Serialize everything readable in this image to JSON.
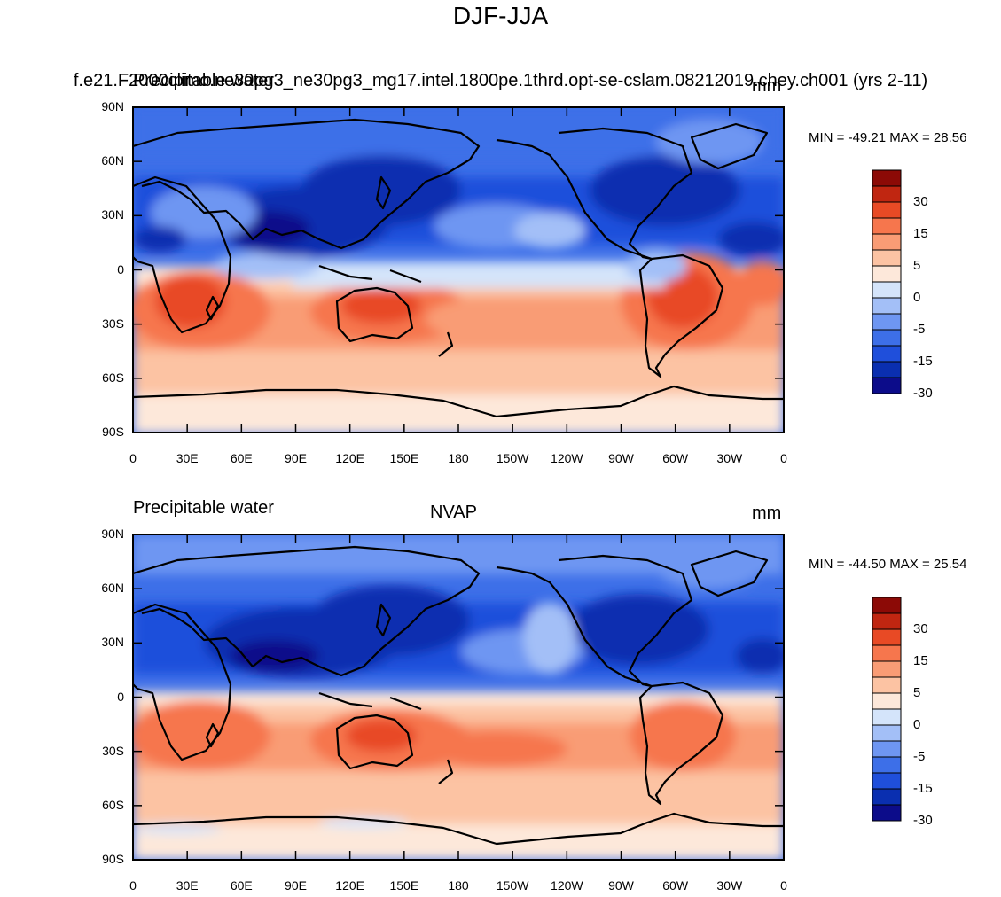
{
  "page": {
    "title": "DJF-JJA"
  },
  "colors": {
    "scale": [
      "#0c0c8a",
      "#0a2fb0",
      "#1f4fdb",
      "#3d6fe8",
      "#6e96f2",
      "#a3bff7",
      "#d4e4fa",
      "#fde8da",
      "#fcc3a3",
      "#f99c75",
      "#f6764d",
      "#e84a25",
      "#c02611",
      "#8c0a06"
    ],
    "coast": "#000000",
    "ocean_default": "#f5b192"
  },
  "panels": [
    {
      "id": "model",
      "left_label": "Precipitable water",
      "center_label": "f.e21.F2000climo.ne30pg3_ne30pg3_mg17.intel.1800pe.1thrd.opt-se-cslam.08212019.chey.ch001 (yrs 2-11)",
      "right_label": "mm",
      "min_max": "MIN = -49.21 MAX =  28.56"
    },
    {
      "id": "obs",
      "left_label": "Precipitable water",
      "center_label": "NVAP",
      "right_label": "mm",
      "min_max": "MIN = -44.50 MAX =  25.54"
    }
  ],
  "axes": {
    "lat_labels": [
      "90N",
      "60N",
      "30N",
      "0",
      "30S",
      "60S",
      "90S"
    ],
    "lon_labels": [
      "0",
      "30E",
      "60E",
      "90E",
      "120E",
      "150E",
      "180",
      "150W",
      "120W",
      "90W",
      "60W",
      "30W",
      "0"
    ]
  },
  "colorbar": {
    "labels": [
      "30",
      "15",
      "5",
      "0",
      "-5",
      "-15",
      "-30"
    ]
  },
  "chart_data": [
    {
      "type": "heatmap",
      "title": "Precipitable water",
      "subtitle": "f.e21.F2000climo.ne30pg3_ne30pg3_mg17.intel.1800pe.1thrd.opt-se-cslam.08212019.chey.ch001 (yrs 2-11)",
      "units": "mm",
      "min": -49.21,
      "max": 28.56,
      "xlim": [
        0,
        360
      ],
      "ylim": [
        -90,
        90
      ],
      "contour_levels": [
        -40,
        -30,
        -20,
        -15,
        -10,
        -5,
        -2,
        0,
        2,
        5,
        10,
        15,
        20,
        30,
        40
      ]
    },
    {
      "type": "heatmap",
      "title": "NVAP",
      "units": "mm",
      "min": -44.5,
      "max": 25.54,
      "xlim": [
        0,
        360
      ],
      "ylim": [
        -90,
        90
      ],
      "contour_levels": [
        -40,
        -30,
        -20,
        -15,
        -10,
        -5,
        -2,
        0,
        2,
        5,
        10,
        15,
        20,
        30,
        40
      ]
    }
  ]
}
